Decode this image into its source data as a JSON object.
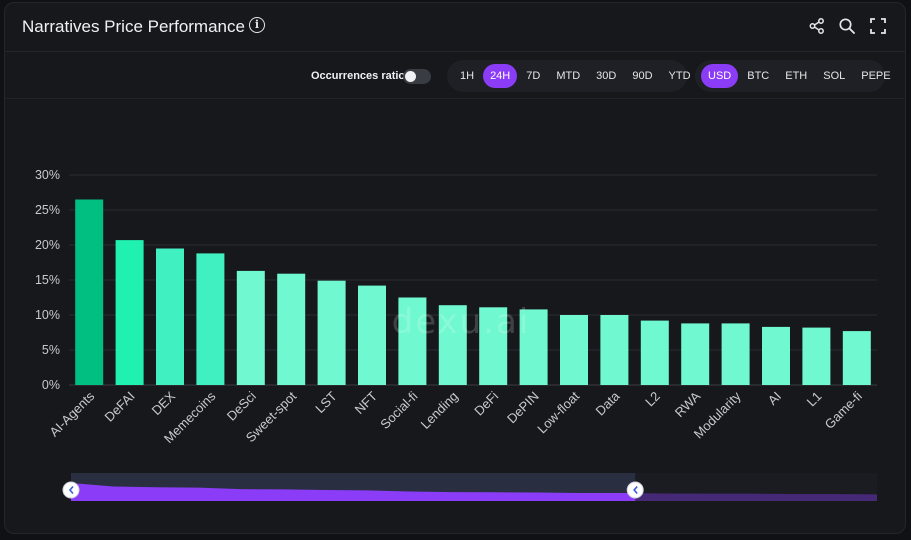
{
  "header": {
    "title": "Narratives Price Performance",
    "info_glyph": "i",
    "icons": [
      "share-icon",
      "search-icon",
      "fullscreen-icon"
    ]
  },
  "toolbar": {
    "occurrences_label": "Occurrences ratio",
    "occurrences_enabled": false,
    "time_ranges": [
      "1H",
      "24H",
      "7D",
      "MTD",
      "30D",
      "90D",
      "YTD"
    ],
    "selected_time_range": "24H",
    "currencies": [
      "USD",
      "BTC",
      "ETH",
      "SOL",
      "PEPE"
    ],
    "selected_currency": "USD"
  },
  "watermark": "dexu.ai",
  "colors": {
    "accent": "#8b3cf7",
    "bar_top": "#00bf80",
    "bar_second": "#20f0b0",
    "bar_mid": "#40f0c0",
    "bar_low": "#70f8d0",
    "background": "#17181c"
  },
  "chart_data": {
    "type": "bar",
    "categories": [
      "AI-Agents",
      "DeFAI",
      "DEX",
      "Memecoins",
      "DeSci",
      "Sweet-spot",
      "LST",
      "NFT",
      "Social-fi",
      "Lending",
      "DeFi",
      "DePIN",
      "Low-float",
      "Data",
      "L2",
      "RWA",
      "Modularity",
      "AI",
      "L1",
      "Game-fi"
    ],
    "values": [
      26.5,
      20.7,
      19.5,
      18.8,
      16.3,
      15.9,
      14.9,
      14.2,
      12.5,
      11.4,
      11.1,
      10.8,
      10.0,
      10.0,
      9.2,
      8.8,
      8.8,
      8.3,
      8.2,
      7.7
    ],
    "title": "",
    "xlabel": "",
    "ylabel": "",
    "ylim": [
      0,
      30
    ],
    "yticks": [
      "0%",
      "5%",
      "10%",
      "15%",
      "20%",
      "25%",
      "30%"
    ],
    "grid": true,
    "legend": "none",
    "zoom_range": [
      0,
      0.7
    ]
  }
}
